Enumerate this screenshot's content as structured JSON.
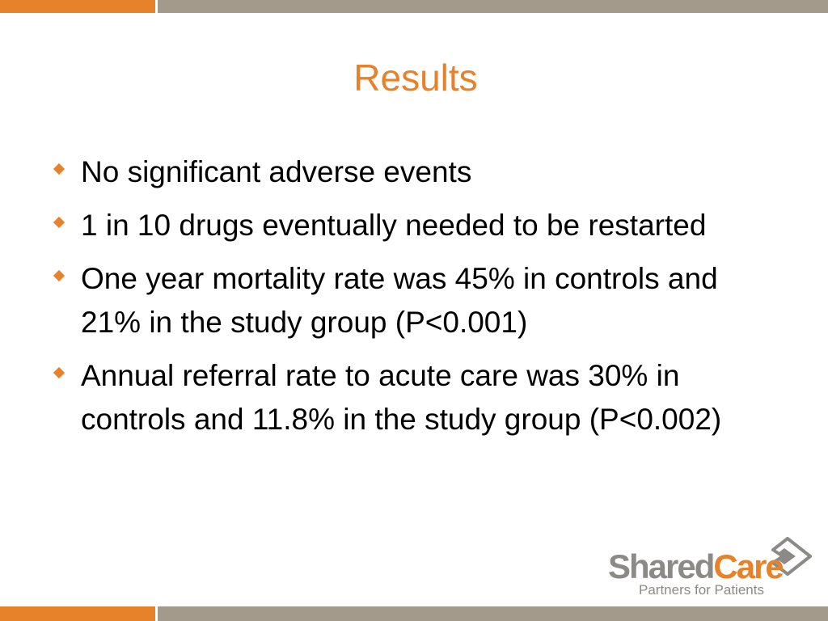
{
  "colors": {
    "accent_orange": "#e8822a",
    "bar_gray": "#a39a8c",
    "logo_gray": "#8c8a86",
    "text": "#000000"
  },
  "slide": {
    "title": "Results",
    "bullets": [
      "No significant adverse events",
      "1 in 10 drugs eventually needed to be restarted",
      "One year mortality rate was 45% in  controls and 21% in the study group (P<0.001)",
      "Annual referral rate to acute care was 30% in controls and 11.8% in the study group (P<0.002)"
    ],
    "bullet_icon": "orange-diamond-icon"
  },
  "logo": {
    "word_part1": "Shared",
    "word_part2": "Care",
    "tagline": "Partners for Patients",
    "icon": "diamond-logo-icon"
  }
}
